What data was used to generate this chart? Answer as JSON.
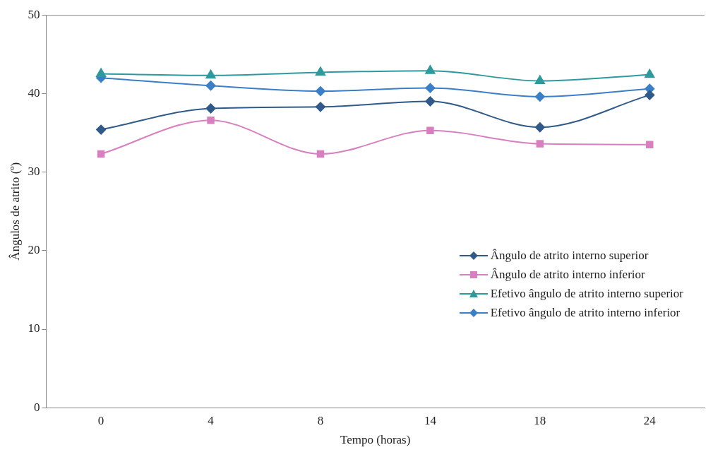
{
  "chart_data": {
    "type": "line",
    "xlabel": "Tempo (horas)",
    "ylabel": "Ângulos de atrito (º)",
    "categories": [
      "0",
      "4",
      "8",
      "14",
      "18",
      "24"
    ],
    "ylim": [
      0,
      50
    ],
    "yticks": [
      0,
      10,
      20,
      30,
      40,
      50
    ],
    "grid": false,
    "legend": "right",
    "series": [
      {
        "name": "Ângulo de atrito interno superior",
        "color": "#2f5a8a",
        "marker": "diamond",
        "values": [
          35.4,
          38.1,
          38.3,
          39.0,
          35.7,
          39.8
        ]
      },
      {
        "name": "Ângulo de atrito interno inferior",
        "color": "#d77fbf",
        "marker": "square",
        "values": [
          32.3,
          36.6,
          32.3,
          35.3,
          33.6,
          33.5
        ]
      },
      {
        "name": "Efetivo ângulo de atrito interno superior",
        "color": "#2e9a9e",
        "marker": "triangle",
        "values": [
          42.5,
          42.3,
          42.7,
          42.9,
          41.6,
          42.4
        ]
      },
      {
        "name": "Efetivo ângulo de atrito interno inferior",
        "color": "#3a7fc8",
        "marker": "diamond",
        "values": [
          42.0,
          41.0,
          40.3,
          40.7,
          39.6,
          40.6
        ]
      }
    ]
  }
}
